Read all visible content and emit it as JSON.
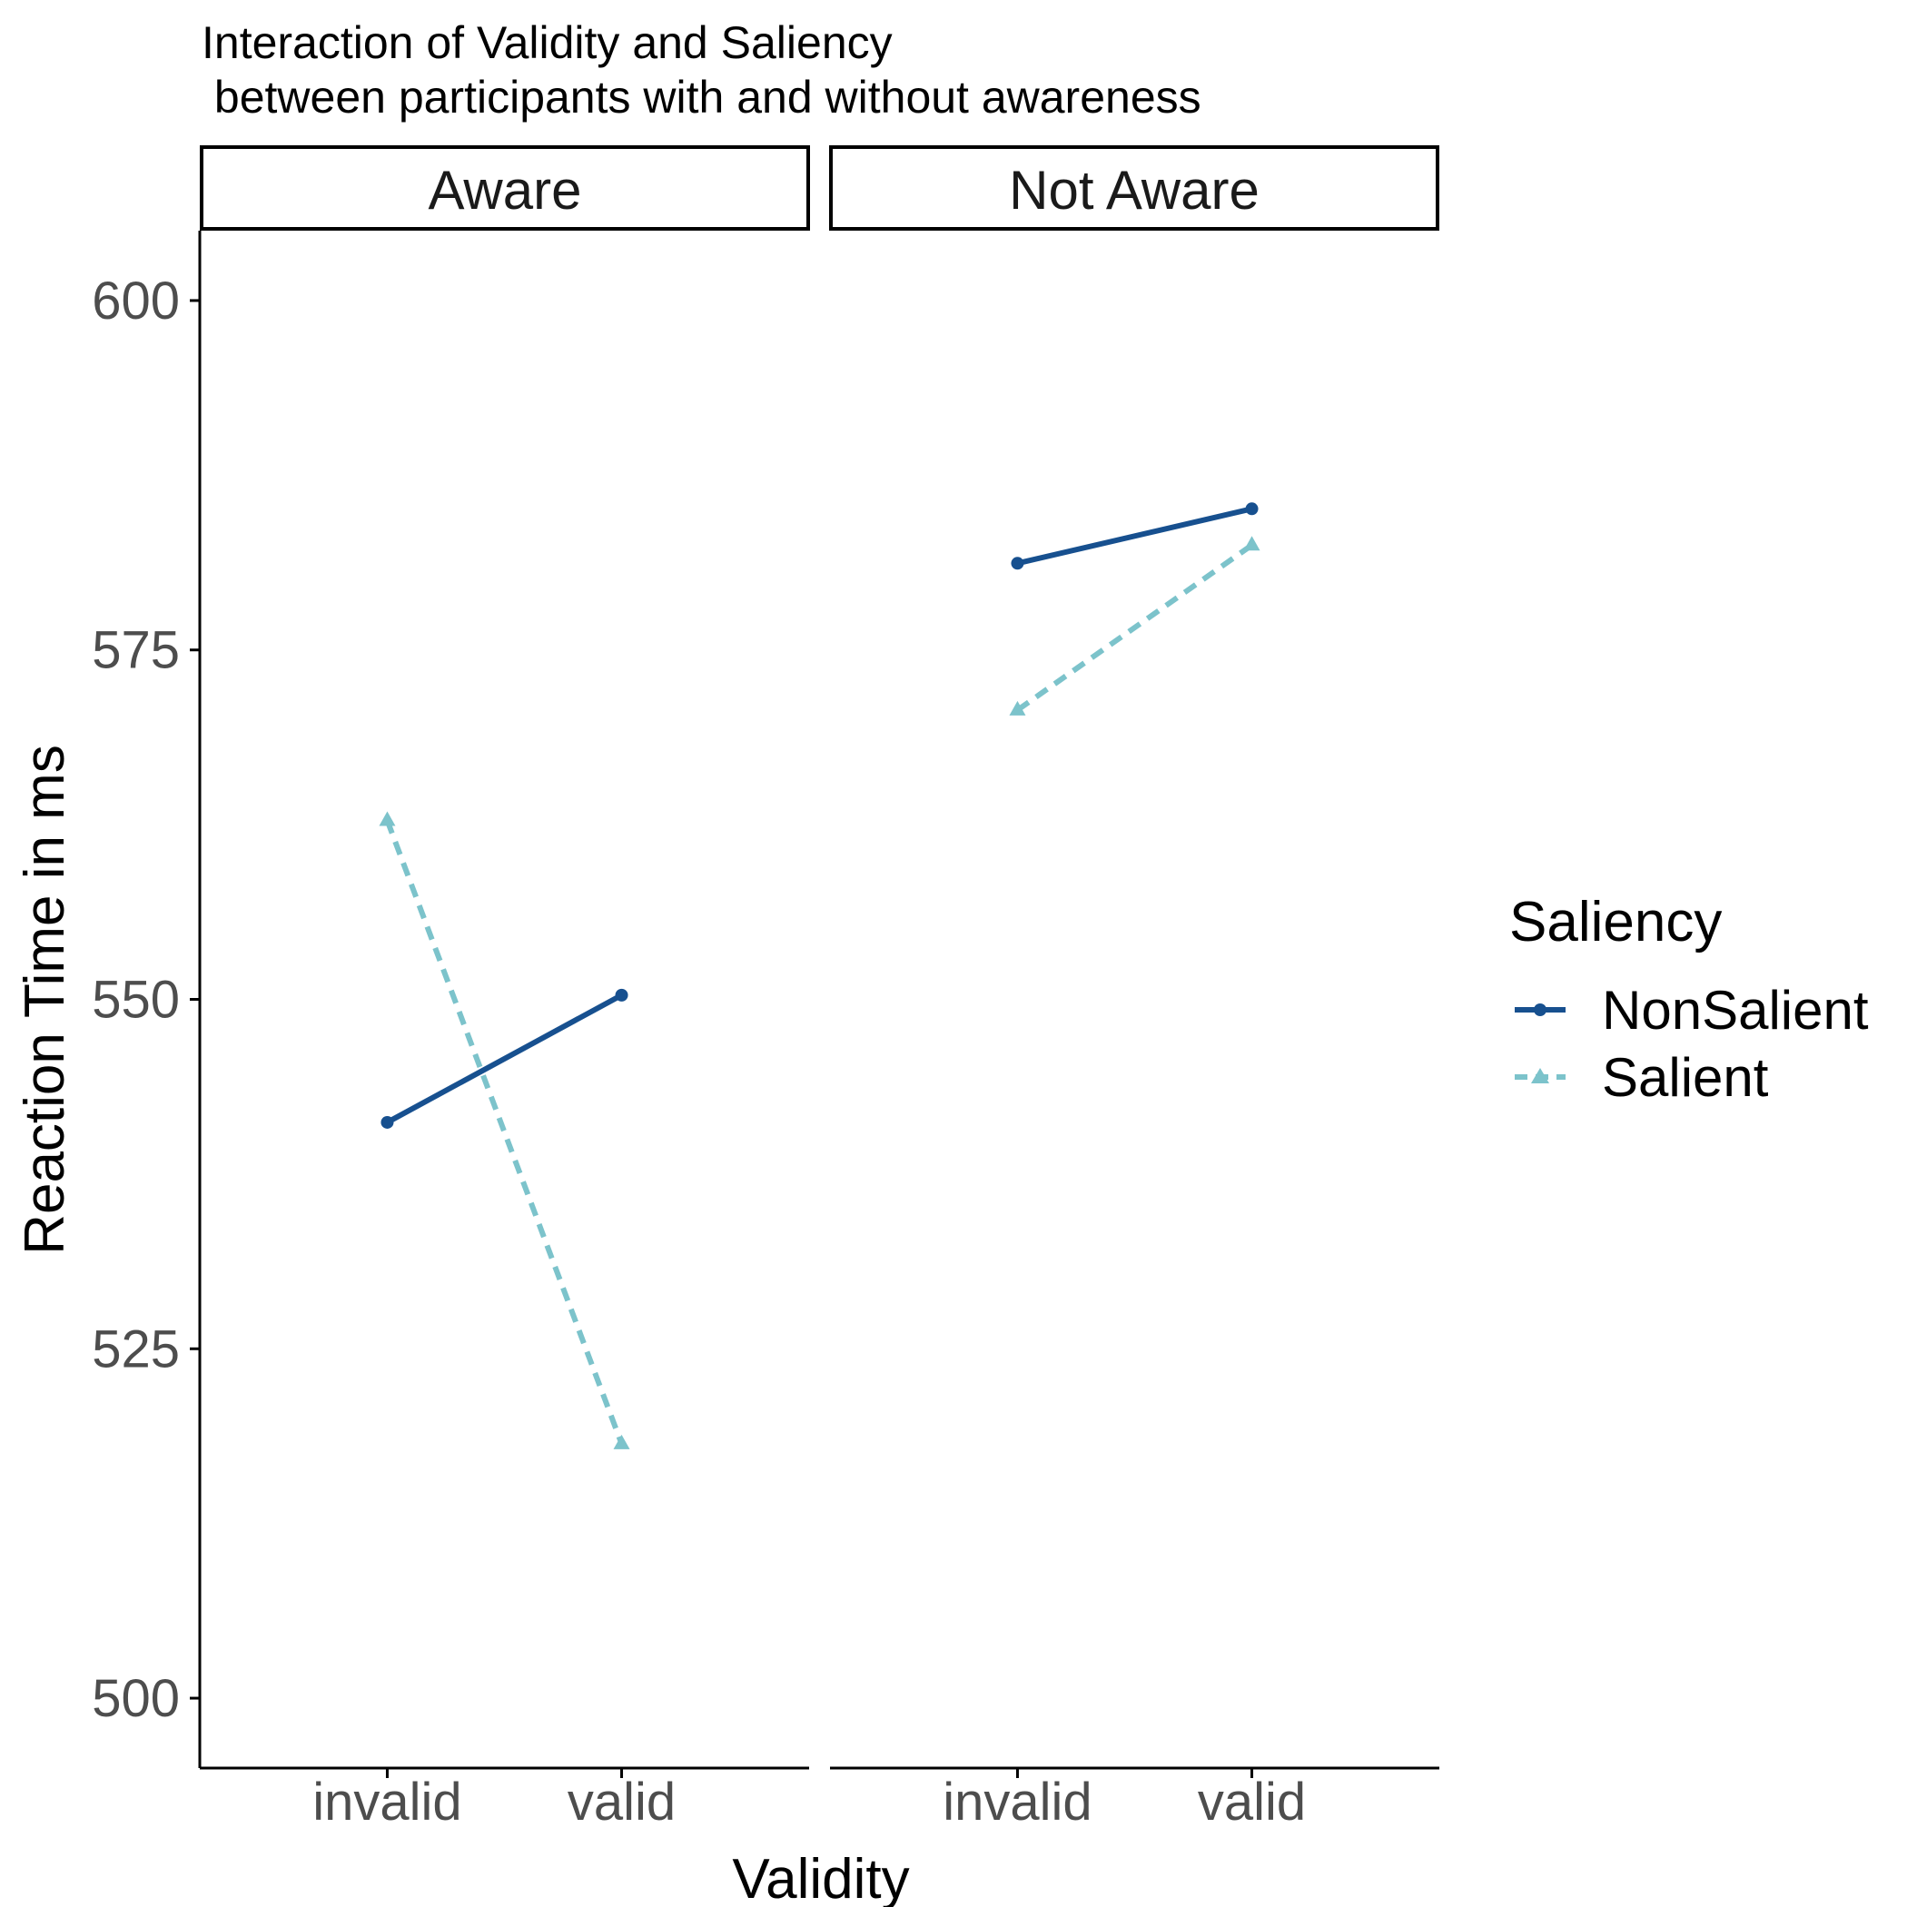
{
  "chart_data": {
    "type": "line",
    "title": "Interaction of Validity and Saliency",
    "subtitle": " between participants with and without awareness",
    "xlabel": "Validity",
    "ylabel": "Reaction Time in ms",
    "ylim": [
      495,
      605
    ],
    "yticks": [
      "500",
      "525",
      "550",
      "575",
      "600"
    ],
    "categories": [
      "invalid",
      "valid"
    ],
    "grid": false,
    "legend": {
      "title": "Saliency",
      "position": "right"
    },
    "panels": [
      {
        "label": "Aware",
        "series": [
          {
            "name": "NonSalient",
            "values": [
              541.2,
              550.3
            ]
          },
          {
            "name": "Salient",
            "values": [
              562.8,
              518.2
            ]
          }
        ]
      },
      {
        "label": "Not Aware",
        "series": [
          {
            "name": "NonSalient",
            "values": [
              581.2,
              585.1
            ]
          },
          {
            "name": "Salient",
            "values": [
              570.7,
              582.5
            ]
          }
        ]
      }
    ],
    "series_styles": [
      {
        "name": "NonSalient",
        "color": "#17508f",
        "line": "solid",
        "marker": "circle"
      },
      {
        "name": "Salient",
        "color": "#7cc3cb",
        "line": "dashed",
        "marker": "triangle"
      }
    ]
  }
}
